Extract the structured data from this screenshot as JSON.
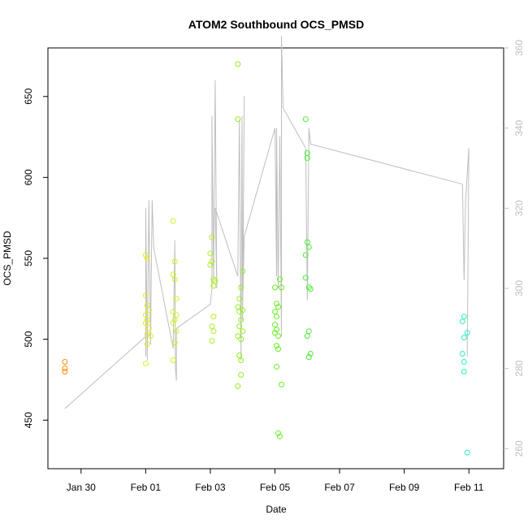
{
  "chart_data": {
    "type": "scatter",
    "title": "ATOM2 Southbound OCS_PMSD",
    "xlabel": "Date",
    "ylabel": "OCS_PMSD",
    "x_ticks": [
      "Jan 30",
      "Feb 01",
      "Feb 03",
      "Feb 05",
      "Feb 07",
      "Feb 09",
      "Feb 11"
    ],
    "x_tick_days": [
      1,
      3,
      5,
      7,
      9,
      11,
      13
    ],
    "xlim_days": [
      0,
      14.05
    ],
    "xlim_note": "days since Jan 29 00:00",
    "ylim": [
      420,
      680
    ],
    "y_ticks": [
      450,
      500,
      550,
      600,
      650
    ],
    "y2lim": [
      255,
      360
    ],
    "y2_ticks": [
      260,
      280,
      300,
      320,
      340,
      360
    ],
    "grid": false,
    "colors": {
      "axis": "#000000",
      "secondary_axis": "#bebebe",
      "line": "#bebebe"
    },
    "points": [
      {
        "x": 0.5,
        "y": 486,
        "color": "#ff8c00"
      },
      {
        "x": 0.5,
        "y": 482,
        "color": "#ff8c00"
      },
      {
        "x": 0.5,
        "y": 480,
        "color": "#ff8c00"
      },
      {
        "x": 3.0,
        "y": 552,
        "color": "#e1ee24"
      },
      {
        "x": 3.05,
        "y": 550,
        "color": "#e1ee24"
      },
      {
        "x": 3.0,
        "y": 527,
        "color": "#e1ee24"
      },
      {
        "x": 3.05,
        "y": 521,
        "color": "#e1ee24"
      },
      {
        "x": 3.1,
        "y": 518,
        "color": "#e1ee24"
      },
      {
        "x": 3.0,
        "y": 515,
        "color": "#e1ee24"
      },
      {
        "x": 3.05,
        "y": 512,
        "color": "#e1ee24"
      },
      {
        "x": 3.0,
        "y": 510,
        "color": "#e1ee24"
      },
      {
        "x": 3.1,
        "y": 507,
        "color": "#e1ee24"
      },
      {
        "x": 3.05,
        "y": 503,
        "color": "#e1ee24"
      },
      {
        "x": 3.15,
        "y": 502,
        "color": "#e1ee24"
      },
      {
        "x": 3.05,
        "y": 497,
        "color": "#e1ee24"
      },
      {
        "x": 3.0,
        "y": 485,
        "color": "#e1ee24"
      },
      {
        "x": 3.85,
        "y": 573,
        "color": "#d4ee24"
      },
      {
        "x": 3.9,
        "y": 548,
        "color": "#d4ee24"
      },
      {
        "x": 3.85,
        "y": 540,
        "color": "#d4ee24"
      },
      {
        "x": 3.9,
        "y": 537,
        "color": "#d4ee24"
      },
      {
        "x": 3.95,
        "y": 525,
        "color": "#d4ee24"
      },
      {
        "x": 3.85,
        "y": 517,
        "color": "#d4ee24"
      },
      {
        "x": 3.95,
        "y": 515,
        "color": "#d4ee24"
      },
      {
        "x": 3.9,
        "y": 512,
        "color": "#d4ee24"
      },
      {
        "x": 3.85,
        "y": 510,
        "color": "#d4ee24"
      },
      {
        "x": 3.95,
        "y": 505,
        "color": "#d4ee24"
      },
      {
        "x": 3.9,
        "y": 498,
        "color": "#d4ee24"
      },
      {
        "x": 3.85,
        "y": 487,
        "color": "#d4ee24"
      },
      {
        "x": 5.05,
        "y": 563,
        "color": "#b0ee24"
      },
      {
        "x": 5.0,
        "y": 553,
        "color": "#b0ee24"
      },
      {
        "x": 5.05,
        "y": 548,
        "color": "#b0ee24"
      },
      {
        "x": 5.0,
        "y": 546,
        "color": "#b0ee24"
      },
      {
        "x": 5.1,
        "y": 537,
        "color": "#b0ee24"
      },
      {
        "x": 5.15,
        "y": 536,
        "color": "#b0ee24"
      },
      {
        "x": 5.1,
        "y": 533,
        "color": "#b0ee24"
      },
      {
        "x": 5.1,
        "y": 514,
        "color": "#b0ee24"
      },
      {
        "x": 5.05,
        "y": 508,
        "color": "#b0ee24"
      },
      {
        "x": 5.1,
        "y": 505,
        "color": "#b0ee24"
      },
      {
        "x": 5.05,
        "y": 499,
        "color": "#b0ee24"
      },
      {
        "x": 5.85,
        "y": 670,
        "color": "#93ee24"
      },
      {
        "x": 5.85,
        "y": 636,
        "color": "#93ee24"
      },
      {
        "x": 6.0,
        "y": 542,
        "color": "#93ee24"
      },
      {
        "x": 5.95,
        "y": 532,
        "color": "#93ee24"
      },
      {
        "x": 5.9,
        "y": 525,
        "color": "#93ee24"
      },
      {
        "x": 5.85,
        "y": 520,
        "color": "#93ee24"
      },
      {
        "x": 6.0,
        "y": 518,
        "color": "#93ee24"
      },
      {
        "x": 5.9,
        "y": 517,
        "color": "#93ee24"
      },
      {
        "x": 5.95,
        "y": 512,
        "color": "#93ee24"
      },
      {
        "x": 5.9,
        "y": 508,
        "color": "#93ee24"
      },
      {
        "x": 6.0,
        "y": 505,
        "color": "#93ee24"
      },
      {
        "x": 5.85,
        "y": 502,
        "color": "#93ee24"
      },
      {
        "x": 5.95,
        "y": 500,
        "color": "#93ee24"
      },
      {
        "x": 5.9,
        "y": 490,
        "color": "#93ee24"
      },
      {
        "x": 5.95,
        "y": 487,
        "color": "#93ee24"
      },
      {
        "x": 5.95,
        "y": 478,
        "color": "#93ee24"
      },
      {
        "x": 5.85,
        "y": 471,
        "color": "#93ee24"
      },
      {
        "x": 7.15,
        "y": 537,
        "color": "#6aee24"
      },
      {
        "x": 7.0,
        "y": 532,
        "color": "#6aee24"
      },
      {
        "x": 7.2,
        "y": 532,
        "color": "#6aee24"
      },
      {
        "x": 7.05,
        "y": 522,
        "color": "#6aee24"
      },
      {
        "x": 7.1,
        "y": 520,
        "color": "#6aee24"
      },
      {
        "x": 7.0,
        "y": 517,
        "color": "#6aee24"
      },
      {
        "x": 7.05,
        "y": 514,
        "color": "#6aee24"
      },
      {
        "x": 7.0,
        "y": 509,
        "color": "#6aee24"
      },
      {
        "x": 7.05,
        "y": 506,
        "color": "#6aee24"
      },
      {
        "x": 7.0,
        "y": 504,
        "color": "#6aee24"
      },
      {
        "x": 7.1,
        "y": 502,
        "color": "#6aee24"
      },
      {
        "x": 7.05,
        "y": 496,
        "color": "#6aee24"
      },
      {
        "x": 7.1,
        "y": 494,
        "color": "#6aee24"
      },
      {
        "x": 7.05,
        "y": 483,
        "color": "#6aee24"
      },
      {
        "x": 7.2,
        "y": 472,
        "color": "#6aee24"
      },
      {
        "x": 7.1,
        "y": 442,
        "color": "#6aee24"
      },
      {
        "x": 7.15,
        "y": 440,
        "color": "#6aee24"
      },
      {
        "x": 7.95,
        "y": 636,
        "color": "#4eee3a"
      },
      {
        "x": 8.0,
        "y": 615,
        "color": "#4eee3a"
      },
      {
        "x": 8.0,
        "y": 612,
        "color": "#4eee3a"
      },
      {
        "x": 8.0,
        "y": 560,
        "color": "#4eee3a"
      },
      {
        "x": 8.05,
        "y": 557,
        "color": "#4eee3a"
      },
      {
        "x": 7.95,
        "y": 552,
        "color": "#4eee3a"
      },
      {
        "x": 7.95,
        "y": 538,
        "color": "#4eee3a"
      },
      {
        "x": 8.05,
        "y": 532,
        "color": "#4eee3a"
      },
      {
        "x": 8.1,
        "y": 531,
        "color": "#4eee3a"
      },
      {
        "x": 8.05,
        "y": 505,
        "color": "#4eee3a"
      },
      {
        "x": 8.0,
        "y": 502,
        "color": "#4eee3a"
      },
      {
        "x": 8.1,
        "y": 491,
        "color": "#4eee3a"
      },
      {
        "x": 8.05,
        "y": 489,
        "color": "#4eee3a"
      },
      {
        "x": 12.85,
        "y": 514,
        "color": "#2eeec0"
      },
      {
        "x": 12.8,
        "y": 511,
        "color": "#2eeec0"
      },
      {
        "x": 12.95,
        "y": 504,
        "color": "#2eeec0"
      },
      {
        "x": 12.85,
        "y": 501,
        "color": "#2eeec0"
      },
      {
        "x": 12.8,
        "y": 491,
        "color": "#2eeec0"
      },
      {
        "x": 12.85,
        "y": 486,
        "color": "#2eeec0"
      },
      {
        "x": 12.85,
        "y": 480,
        "color": "#2eeec0"
      },
      {
        "x": 12.95,
        "y": 430,
        "color": "#2eeec0"
      }
    ],
    "line": [
      [
        0.5,
        270
      ],
      [
        3.0,
        288
      ],
      [
        3.0,
        283
      ],
      [
        3.0,
        320
      ],
      [
        3.05,
        282
      ],
      [
        3.1,
        322
      ],
      [
        3.15,
        286
      ],
      [
        3.2,
        322
      ],
      [
        3.25,
        310
      ],
      [
        3.85,
        285
      ],
      [
        3.9,
        312
      ],
      [
        3.92,
        280
      ],
      [
        3.95,
        277
      ],
      [
        3.95,
        290
      ],
      [
        5.0,
        296
      ],
      [
        5.05,
        300
      ],
      [
        5.05,
        343
      ],
      [
        5.1,
        302
      ],
      [
        5.15,
        352
      ],
      [
        5.2,
        300
      ],
      [
        5.15,
        320
      ],
      [
        5.85,
        303
      ],
      [
        5.9,
        342
      ],
      [
        5.95,
        282
      ],
      [
        5.98,
        343
      ],
      [
        6.0,
        292
      ],
      [
        6.05,
        348
      ],
      [
        6.0,
        296
      ],
      [
        6.05,
        313
      ],
      [
        7.0,
        340
      ],
      [
        7.05,
        303
      ],
      [
        7.05,
        340
      ],
      [
        7.1,
        300
      ],
      [
        7.15,
        338
      ],
      [
        7.2,
        288
      ],
      [
        7.2,
        363
      ],
      [
        7.25,
        345
      ],
      [
        7.95,
        335
      ],
      [
        8.0,
        297
      ],
      [
        8.05,
        340
      ],
      [
        8.1,
        336
      ],
      [
        12.8,
        326
      ],
      [
        12.85,
        302
      ],
      [
        12.9,
        322
      ],
      [
        13.0,
        335
      ],
      [
        12.95,
        283
      ]
    ]
  }
}
